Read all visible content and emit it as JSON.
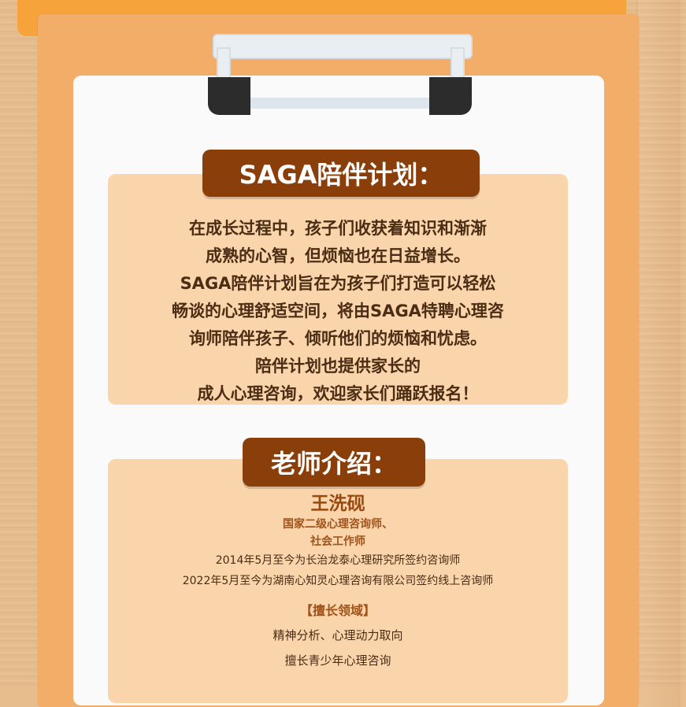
{
  "section1": {
    "title": "SAGA陪伴计划：",
    "lines": [
      "在成长过程中，孩子们收获着知识和渐渐",
      "成熟的心智，但烦恼也在日益增长。",
      "SAGA陪伴计划旨在为孩子们打造可以轻松",
      "畅谈的心理舒适空间，将由SAGA特聘心理咨",
      "询师陪伴孩子、倾听他们的烦恼和忧虑。",
      "陪伴计划也提供家长的",
      "成人心理咨询，欢迎家长们踊跃报名！"
    ]
  },
  "section2": {
    "title": "老师介绍：",
    "name": "王洗砚",
    "titles": [
      "国家二级心理咨询师、",
      "社会工作师"
    ],
    "experience": [
      "2014年5月至今为长治龙泰心理研究所签约咨询师",
      "2022年5月至今为湖南心知灵心理咨询有限公司签约线上咨询师"
    ],
    "expertise_heading": "【擅长领域】",
    "expertise": [
      "精神分析、心理动力取向",
      "擅长青少年心理咨询"
    ]
  },
  "colors": {
    "pill": "#8a3f0a",
    "box": "#fad4ab",
    "board": "#f2ad69",
    "tab": "#f6a33b"
  }
}
